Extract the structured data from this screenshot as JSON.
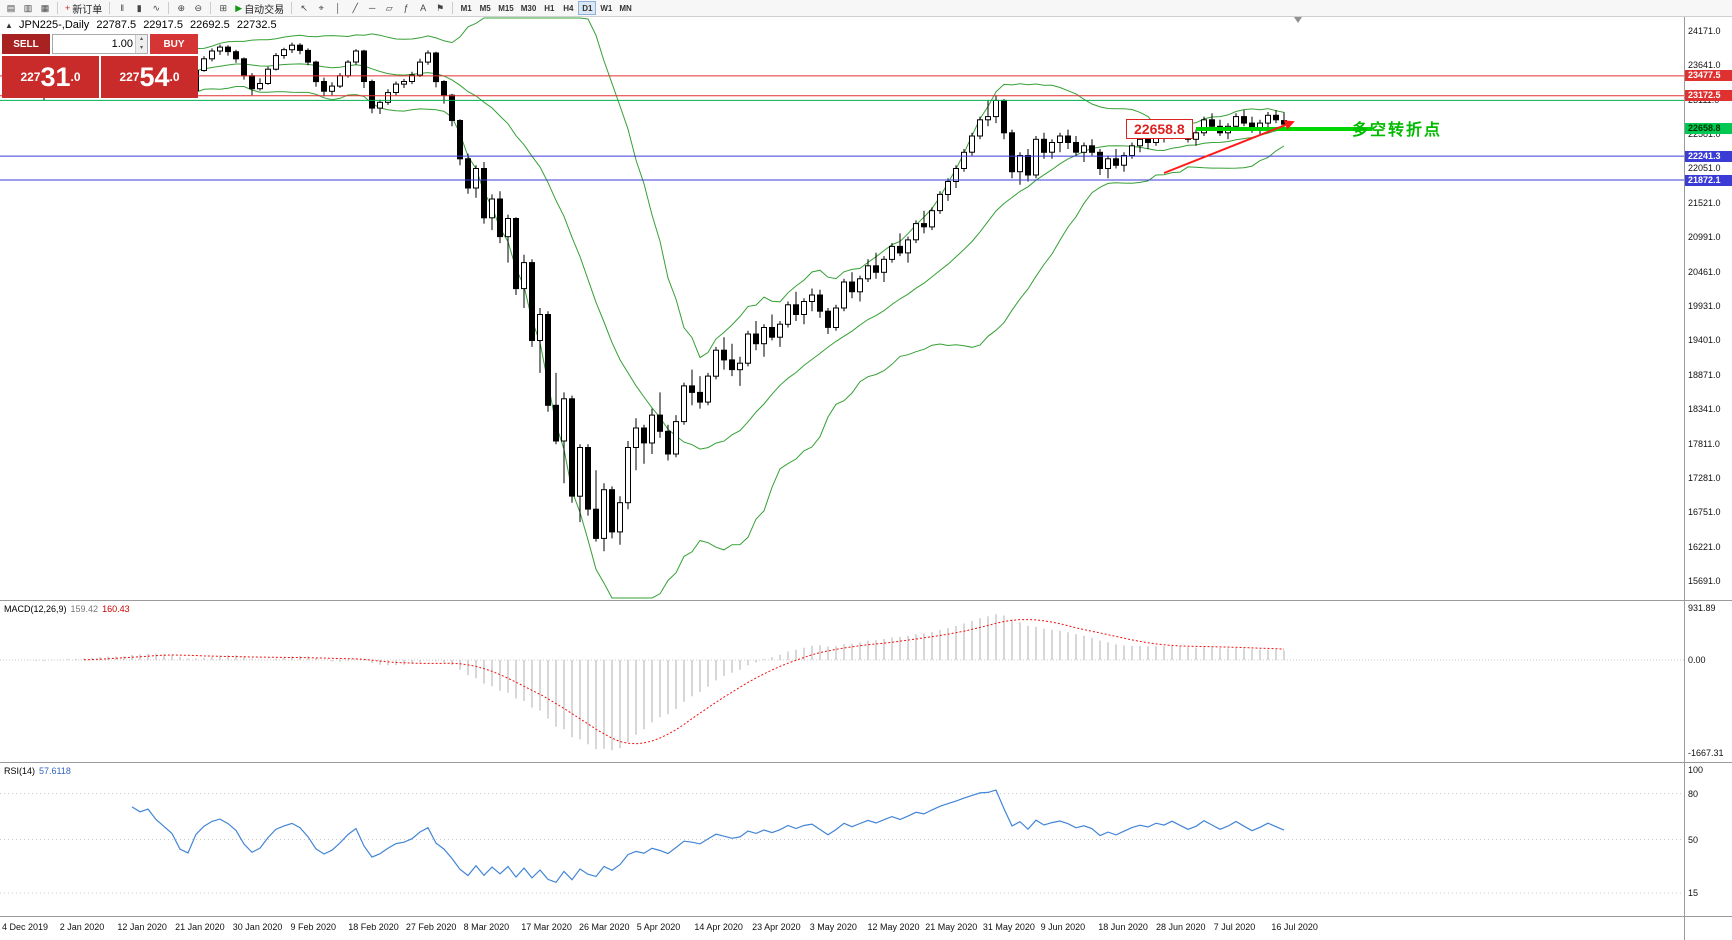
{
  "toolbar": {
    "items": [
      {
        "n": "new-chart-icon",
        "g": "▤"
      },
      {
        "n": "profiles-icon",
        "g": "▥"
      },
      {
        "n": "template-icon",
        "g": "▦"
      },
      {
        "sep": true
      },
      {
        "n": "new-order-button",
        "g": "+",
        "c": "#cc2222",
        "label": "新订单"
      },
      {
        "sep": true
      },
      {
        "n": "bar-chart-icon",
        "g": "‖"
      },
      {
        "n": "candlestick-chart-icon",
        "g": "▮"
      },
      {
        "n": "line-chart-icon",
        "g": "∿"
      },
      {
        "sep": true
      },
      {
        "n": "zoom-in-icon",
        "g": "⊕"
      },
      {
        "n": "zoom-out-icon",
        "g": "⊖"
      },
      {
        "sep": true
      },
      {
        "n": "tile-windows-icon",
        "g": "⊞"
      },
      {
        "n": "auto-trading-button",
        "g": "▶",
        "c": "#119911",
        "label": "自动交易"
      },
      {
        "sep": true
      },
      {
        "n": "cursor-icon",
        "g": "↖"
      },
      {
        "n": "crosshair-icon",
        "g": "⌖"
      },
      {
        "n": "vertical-line-icon",
        "g": "│"
      },
      {
        "n": "trendline-icon",
        "g": "╱"
      },
      {
        "n": "horizontal-line-icon",
        "g": "─"
      },
      {
        "n": "equidistant-channel-icon",
        "g": "▱"
      },
      {
        "n": "fibonacci-icon",
        "g": "ƒ"
      },
      {
        "n": "text-label-icon",
        "g": "A"
      },
      {
        "n": "arrow-tools-icon",
        "g": "⚑"
      },
      {
        "sep": true
      }
    ],
    "timeframes": [
      "M1",
      "M5",
      "M15",
      "M30",
      "H1",
      "H4",
      "D1",
      "W1",
      "MN"
    ],
    "active_timeframe": "D1"
  },
  "header": {
    "symbol": "JPN225-,Daily",
    "open": "22787.5",
    "high": "22917.5",
    "low": "22692.5",
    "close": "22732.5"
  },
  "trade_panel": {
    "collapse_icon": "▲",
    "sell_label": "SELL",
    "buy_label": "BUY",
    "volume": "1.00",
    "spin_up": "▴",
    "spin_down": "▾",
    "bid": {
      "prefix": "227",
      "big": "31",
      "suffix": ".0"
    },
    "ask": {
      "prefix": "227",
      "big": "54",
      "suffix": ".0"
    }
  },
  "price_axis": {
    "ticks": [
      24171.0,
      23641.0,
      23111.0,
      22581.0,
      22051.0,
      21521.0,
      20991.0,
      20461.0,
      19931.0,
      19401.0,
      18871.0,
      18341.0,
      17811.0,
      17281.0,
      16751.0,
      16221.0,
      15691.0
    ],
    "highlights": [
      {
        "label": "23477.5",
        "price": 23477.5,
        "bg": "#e03131",
        "fg": "#ffffff"
      },
      {
        "label": "23172.5",
        "price": 23172.5,
        "bg": "#e03131",
        "fg": "#ffffff"
      },
      {
        "label": "22658.8",
        "price": 22658.8,
        "bg": "#00c853",
        "fg": "#003300"
      },
      {
        "label": "22241.3",
        "price": 22241.3,
        "bg": "#3b3bd6",
        "fg": "#ffffff"
      },
      {
        "label": "21872.1",
        "price": 21872.1,
        "bg": "#3b3bd6",
        "fg": "#ffffff"
      }
    ]
  },
  "macd": {
    "label": "MACD(12,26,9)",
    "value_main": "159.42",
    "value_signal": "160.43",
    "axis_labels": [
      "931.89",
      "0.00",
      "-1667.31"
    ]
  },
  "rsi": {
    "label": "RSI(14)",
    "value": "57.6118",
    "axis_labels": [
      "100",
      "80",
      "50",
      "15"
    ],
    "levels": [
      80,
      50,
      15
    ]
  },
  "objects": {
    "hlines": [
      {
        "price": 23477.5,
        "color": "#e03131"
      },
      {
        "price": 23172.5,
        "color": "#e03131"
      },
      {
        "price": 23100.0,
        "color": "#00b050"
      },
      {
        "price": 22241.3,
        "color": "#3b3bd6"
      },
      {
        "price": 21872.1,
        "color": "#3b3bd6"
      }
    ],
    "thick_segment": {
      "price": 22658.8,
      "bar_start": 147,
      "bar_end": 169,
      "color": "#00d500",
      "width": 4
    },
    "trendline": {
      "bar_start": 143,
      "price_start": 21980,
      "bar_end": 159,
      "price_end": 22760,
      "color": "#ff1a1a",
      "width": 2
    },
    "price_box": {
      "text": "22658.8",
      "price": 22658.8,
      "x": 1126,
      "color": "#dd2222"
    },
    "note": {
      "text": "多空转折点",
      "price": 22720,
      "x": 1352,
      "color": "#00bb00"
    }
  },
  "chart_data": {
    "type": "candlestick",
    "symbol": "JPN225-",
    "timeframe": "Daily",
    "y_range": [
      15400,
      24400
    ],
    "x_labels": [
      "4 Dec 2019",
      "2 Jan 2020",
      "12 Jan 2020",
      "21 Jan 2020",
      "30 Jan 2020",
      "9 Feb 2020",
      "18 Feb 2020",
      "27 Feb 2020",
      "8 Mar 2020",
      "17 Mar 2020",
      "26 Mar 2020",
      "5 Apr 2020",
      "14 Apr 2020",
      "23 Apr 2020",
      "3 May 2020",
      "12 May 2020",
      "21 May 2020",
      "31 May 2020",
      "9 Jun 2020",
      "18 Jun 2020",
      "28 Jun 2020",
      "7 Jul 2020",
      "16 Jul 2020"
    ],
    "indicators": {
      "bollinger": {
        "period": 20,
        "deviation": 2
      },
      "macd": {
        "fast": 12,
        "slow": 26,
        "signal": 9
      },
      "rsi": {
        "period": 14
      }
    },
    "candles": [
      [
        23300,
        23380,
        23230,
        23350
      ],
      [
        23350,
        23420,
        23280,
        23300
      ],
      [
        23300,
        23350,
        23180,
        23220
      ],
      [
        23220,
        23280,
        23100,
        23250
      ],
      [
        23250,
        23480,
        23220,
        23450
      ],
      [
        23450,
        23560,
        23400,
        23520
      ],
      [
        23520,
        23580,
        23420,
        23470
      ],
      [
        23470,
        23540,
        23380,
        23430
      ],
      [
        23430,
        23500,
        23350,
        23480
      ],
      [
        23480,
        23640,
        23450,
        23600
      ],
      [
        23600,
        23700,
        23520,
        23650
      ],
      [
        23650,
        23720,
        23560,
        23620
      ],
      [
        23620,
        23680,
        23480,
        23540
      ],
      [
        23540,
        23660,
        23500,
        23630
      ],
      [
        23630,
        23870,
        23600,
        23840
      ],
      [
        23840,
        23880,
        23760,
        23790
      ],
      [
        23790,
        23860,
        23740,
        23850
      ],
      [
        23850,
        23890,
        23700,
        23740
      ],
      [
        23740,
        23780,
        23610,
        23660
      ],
      [
        23660,
        23700,
        23520,
        23570
      ],
      [
        23570,
        23590,
        23280,
        23320
      ],
      [
        23320,
        23420,
        23220,
        23250
      ],
      [
        23250,
        23580,
        23230,
        23560
      ],
      [
        23560,
        23780,
        23540,
        23740
      ],
      [
        23740,
        23900,
        23700,
        23860
      ],
      [
        23860,
        23960,
        23800,
        23920
      ],
      [
        23920,
        23950,
        23790,
        23850
      ],
      [
        23850,
        23880,
        23680,
        23740
      ],
      [
        23740,
        23760,
        23420,
        23480
      ],
      [
        23480,
        23520,
        23180,
        23280
      ],
      [
        23280,
        23440,
        23250,
        23360
      ],
      [
        23360,
        23620,
        23340,
        23580
      ],
      [
        23580,
        23830,
        23560,
        23790
      ],
      [
        23790,
        23910,
        23740,
        23880
      ],
      [
        23880,
        23990,
        23830,
        23950
      ],
      [
        23950,
        23980,
        23810,
        23870
      ],
      [
        23870,
        23900,
        23640,
        23690
      ],
      [
        23690,
        23710,
        23310,
        23390
      ],
      [
        23390,
        23450,
        23160,
        23240
      ],
      [
        23240,
        23380,
        23180,
        23320
      ],
      [
        23320,
        23520,
        23290,
        23480
      ],
      [
        23480,
        23720,
        23450,
        23690
      ],
      [
        23690,
        23890,
        23650,
        23860
      ],
      [
        23860,
        23880,
        23290,
        23390
      ],
      [
        23390,
        23420,
        22900,
        22980
      ],
      [
        22980,
        23110,
        22890,
        23070
      ],
      [
        23070,
        23270,
        23030,
        23220
      ],
      [
        23220,
        23390,
        23180,
        23350
      ],
      [
        23350,
        23430,
        23290,
        23390
      ],
      [
        23390,
        23540,
        23350,
        23490
      ],
      [
        23490,
        23740,
        23460,
        23690
      ],
      [
        23690,
        23870,
        23650,
        23830
      ],
      [
        23830,
        23850,
        23300,
        23390
      ],
      [
        23390,
        23410,
        23050,
        23180
      ],
      [
        23180,
        23200,
        22700,
        22790
      ],
      [
        22790,
        22810,
        22100,
        22200
      ],
      [
        22200,
        22280,
        21660,
        21750
      ],
      [
        21750,
        22100,
        21600,
        22050
      ],
      [
        22050,
        22150,
        21200,
        21290
      ],
      [
        21290,
        21650,
        21100,
        21580
      ],
      [
        21580,
        21700,
        20900,
        21000
      ],
      [
        21000,
        21340,
        20600,
        21280
      ],
      [
        21280,
        21300,
        20100,
        20200
      ],
      [
        20200,
        20720,
        19900,
        20600
      ],
      [
        20600,
        20650,
        19300,
        19400
      ],
      [
        19400,
        19900,
        18900,
        19800
      ],
      [
        19800,
        19850,
        18300,
        18400
      ],
      [
        18400,
        18900,
        17800,
        17850
      ],
      [
        17850,
        18600,
        17200,
        18500
      ],
      [
        18500,
        18550,
        16900,
        17000
      ],
      [
        17000,
        17800,
        16600,
        17750
      ],
      [
        17750,
        17800,
        16700,
        16800
      ],
      [
        16800,
        17400,
        16300,
        16350
      ],
      [
        16350,
        17200,
        16150,
        17100
      ],
      [
        17100,
        17150,
        16350,
        16450
      ],
      [
        16450,
        17000,
        16250,
        16900
      ],
      [
        16900,
        17850,
        16800,
        17750
      ],
      [
        17750,
        18200,
        17400,
        18050
      ],
      [
        18050,
        18100,
        17500,
        17820
      ],
      [
        17820,
        18350,
        17650,
        18250
      ],
      [
        18250,
        18600,
        17900,
        18000
      ],
      [
        18000,
        18100,
        17550,
        17650
      ],
      [
        17650,
        18250,
        17600,
        18150
      ],
      [
        18150,
        18750,
        18100,
        18700
      ],
      [
        18700,
        18950,
        18400,
        18600
      ],
      [
        18600,
        18850,
        18350,
        18450
      ],
      [
        18450,
        18900,
        18400,
        18850
      ],
      [
        18850,
        19300,
        18800,
        19250
      ],
      [
        19250,
        19450,
        18950,
        19100
      ],
      [
        19100,
        19350,
        18850,
        18950
      ],
      [
        18950,
        19150,
        18700,
        19050
      ],
      [
        19050,
        19550,
        19000,
        19500
      ],
      [
        19500,
        19700,
        19250,
        19350
      ],
      [
        19350,
        19650,
        19150,
        19600
      ],
      [
        19600,
        19800,
        19400,
        19450
      ],
      [
        19450,
        19700,
        19300,
        19650
      ],
      [
        19650,
        20000,
        19600,
        19950
      ],
      [
        19950,
        20150,
        19700,
        19800
      ],
      [
        19800,
        20050,
        19650,
        20000
      ],
      [
        20000,
        20200,
        19850,
        20100
      ],
      [
        20100,
        20180,
        19750,
        19850
      ],
      [
        19850,
        19900,
        19500,
        19600
      ],
      [
        19600,
        19950,
        19550,
        19900
      ],
      [
        19900,
        20350,
        19850,
        20300
      ],
      [
        20300,
        20450,
        20050,
        20150
      ],
      [
        20150,
        20400,
        20000,
        20350
      ],
      [
        20350,
        20650,
        20300,
        20550
      ],
      [
        20550,
        20750,
        20350,
        20450
      ],
      [
        20450,
        20700,
        20300,
        20650
      ],
      [
        20650,
        20900,
        20600,
        20850
      ],
      [
        20850,
        21050,
        20700,
        20750
      ],
      [
        20750,
        21000,
        20600,
        20950
      ],
      [
        20950,
        21250,
        20900,
        21200
      ],
      [
        21200,
        21400,
        21050,
        21150
      ],
      [
        21150,
        21450,
        21100,
        21400
      ],
      [
        21400,
        21700,
        21350,
        21650
      ],
      [
        21650,
        21900,
        21550,
        21850
      ],
      [
        21850,
        22100,
        21750,
        22050
      ],
      [
        22050,
        22350,
        22000,
        22300
      ],
      [
        22300,
        22600,
        22250,
        22550
      ],
      [
        22550,
        22850,
        22500,
        22800
      ],
      [
        22800,
        23100,
        22700,
        22850
      ],
      [
        22850,
        23180,
        22750,
        23100
      ],
      [
        23100,
        23120,
        22500,
        22600
      ],
      [
        22600,
        22650,
        21900,
        22000
      ],
      [
        22000,
        22300,
        21800,
        22250
      ],
      [
        22250,
        22350,
        21850,
        21950
      ],
      [
        21950,
        22550,
        21900,
        22500
      ],
      [
        22500,
        22600,
        22200,
        22300
      ],
      [
        22300,
        22500,
        22200,
        22450
      ],
      [
        22450,
        22600,
        22300,
        22550
      ],
      [
        22550,
        22650,
        22350,
        22450
      ],
      [
        22450,
        22550,
        22250,
        22300
      ],
      [
        22300,
        22450,
        22150,
        22400
      ],
      [
        22400,
        22500,
        22250,
        22300
      ],
      [
        22300,
        22350,
        21950,
        22050
      ],
      [
        22050,
        22250,
        21900,
        22200
      ],
      [
        22200,
        22350,
        22050,
        22100
      ],
      [
        22100,
        22300,
        22000,
        22250
      ],
      [
        22250,
        22450,
        22200,
        22400
      ],
      [
        22400,
        22550,
        22300,
        22500
      ],
      [
        22500,
        22600,
        22350,
        22450
      ],
      [
        22450,
        22650,
        22400,
        22600
      ],
      [
        22600,
        22700,
        22450,
        22550
      ],
      [
        22550,
        22750,
        22500,
        22700
      ],
      [
        22700,
        22800,
        22550,
        22600
      ],
      [
        22600,
        22700,
        22450,
        22500
      ],
      [
        22500,
        22650,
        22400,
        22600
      ],
      [
        22600,
        22850,
        22550,
        22800
      ],
      [
        22800,
        22900,
        22650,
        22700
      ],
      [
        22700,
        22800,
        22550,
        22600
      ],
      [
        22600,
        22750,
        22500,
        22700
      ],
      [
        22700,
        22900,
        22650,
        22850
      ],
      [
        22850,
        22950,
        22700,
        22750
      ],
      [
        22750,
        22850,
        22600,
        22650
      ],
      [
        22650,
        22800,
        22550,
        22750
      ],
      [
        22750,
        22920,
        22690,
        22870
      ],
      [
        22870,
        22950,
        22750,
        22800
      ],
      [
        22787.5,
        22917.5,
        22692.5,
        22732.5
      ]
    ]
  }
}
